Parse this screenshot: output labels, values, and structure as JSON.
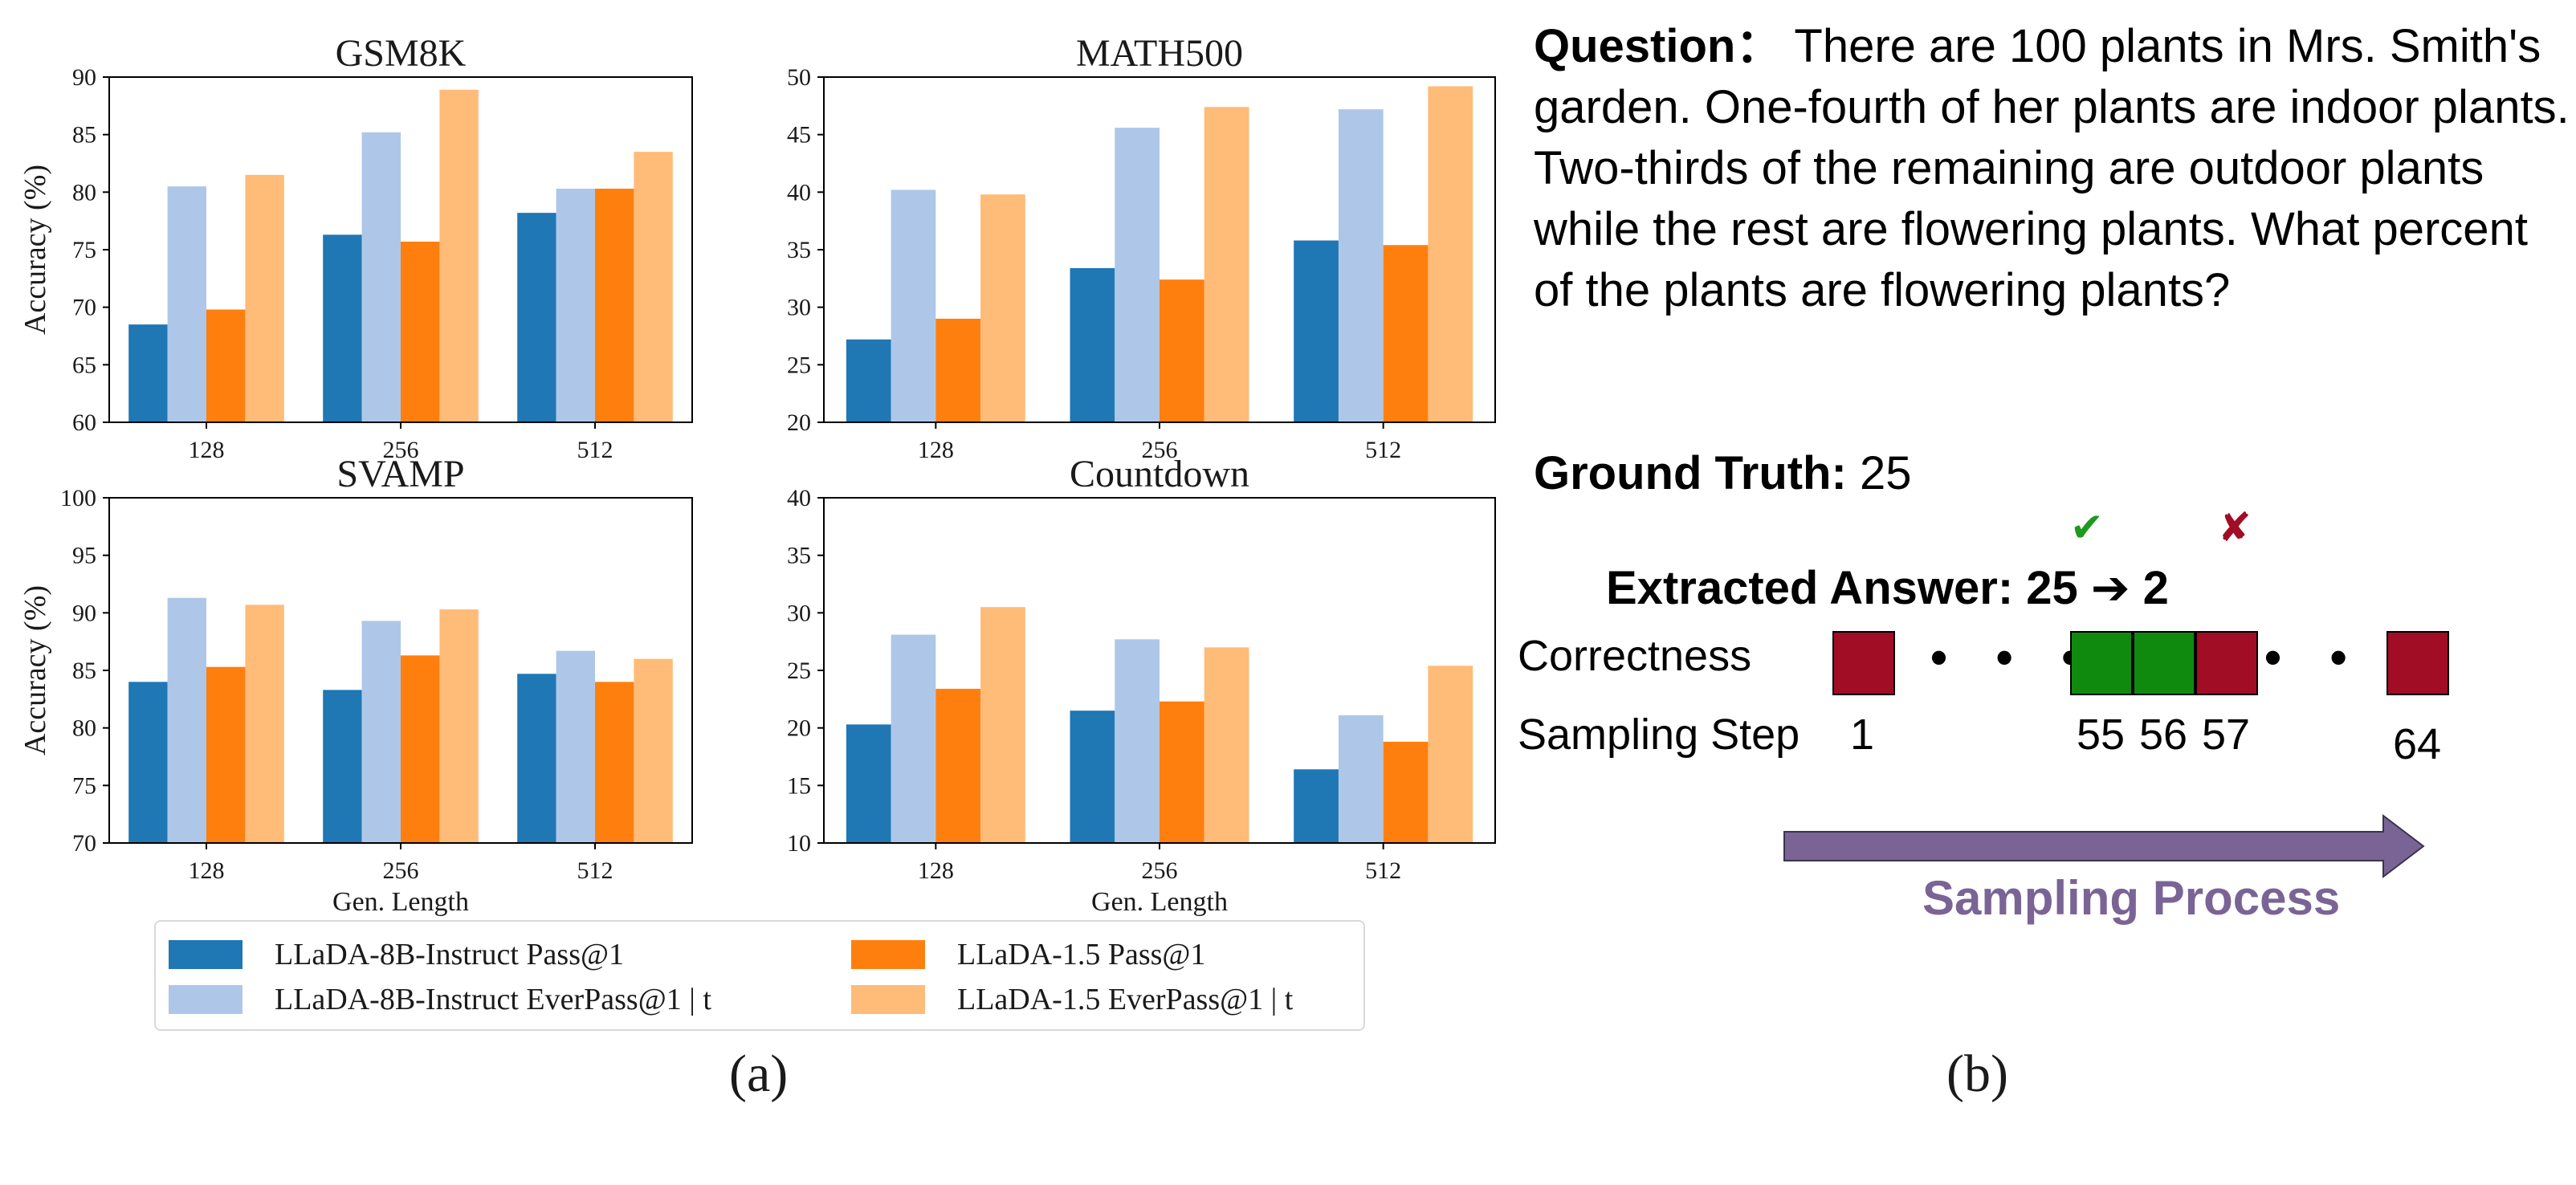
{
  "chart_data": [
    {
      "type": "bar",
      "title": "GSM8K",
      "categories": [
        "128",
        "256",
        "512"
      ],
      "ylim": [
        60,
        90
      ],
      "yticks": [
        60,
        65,
        70,
        75,
        80,
        85,
        90
      ],
      "ylabel": "Accuracy (%)",
      "xlabel": "",
      "series": [
        {
          "name": "LLaDA-8B-Instruct Pass@1",
          "values": [
            68.5,
            76.3,
            78.2
          ]
        },
        {
          "name": "LLaDA-8B-Instruct EverPass@1 | t",
          "values": [
            80.5,
            85.2,
            80.3
          ]
        },
        {
          "name": "LLaDA-1.5 Pass@1",
          "values": [
            69.8,
            75.7,
            80.3
          ]
        },
        {
          "name": "LLaDA-1.5 EverPass@1 | t",
          "values": [
            81.5,
            88.9,
            83.5
          ]
        }
      ]
    },
    {
      "type": "bar",
      "title": "MATH500",
      "categories": [
        "128",
        "256",
        "512"
      ],
      "ylim": [
        20,
        50
      ],
      "yticks": [
        20,
        25,
        30,
        35,
        40,
        45,
        50
      ],
      "ylabel": "",
      "xlabel": "",
      "series": [
        {
          "name": "LLaDA-8B-Instruct Pass@1",
          "values": [
            27.2,
            33.4,
            35.8
          ]
        },
        {
          "name": "LLaDA-8B-Instruct EverPass@1 | t",
          "values": [
            40.2,
            45.6,
            47.2
          ]
        },
        {
          "name": "LLaDA-1.5 Pass@1",
          "values": [
            29.0,
            32.4,
            35.4
          ]
        },
        {
          "name": "LLaDA-1.5 EverPass@1 | t",
          "values": [
            39.8,
            47.4,
            49.2
          ]
        }
      ]
    },
    {
      "type": "bar",
      "title": "SVAMP",
      "categories": [
        "128",
        "256",
        "512"
      ],
      "ylim": [
        70,
        100
      ],
      "yticks": [
        70,
        75,
        80,
        85,
        90,
        95,
        100
      ],
      "ylabel": "Accuracy (%)",
      "xlabel": "Gen. Length",
      "series": [
        {
          "name": "LLaDA-8B-Instruct Pass@1",
          "values": [
            84.0,
            83.3,
            84.7
          ]
        },
        {
          "name": "LLaDA-8B-Instruct EverPass@1 | t",
          "values": [
            91.3,
            89.3,
            86.7
          ]
        },
        {
          "name": "LLaDA-1.5 Pass@1",
          "values": [
            85.3,
            86.3,
            84.0
          ]
        },
        {
          "name": "LLaDA-1.5 EverPass@1 | t",
          "values": [
            90.7,
            90.3,
            86.0
          ]
        }
      ]
    },
    {
      "type": "bar",
      "title": "Countdown",
      "categories": [
        "128",
        "256",
        "512"
      ],
      "ylim": [
        10,
        40
      ],
      "yticks": [
        10,
        15,
        20,
        25,
        30,
        35,
        40
      ],
      "ylabel": "",
      "xlabel": "Gen. Length",
      "series": [
        {
          "name": "LLaDA-8B-Instruct Pass@1",
          "values": [
            20.3,
            21.5,
            16.4
          ]
        },
        {
          "name": "LLaDA-8B-Instruct EverPass@1 | t",
          "values": [
            28.1,
            27.7,
            21.1
          ]
        },
        {
          "name": "LLaDA-1.5 Pass@1",
          "values": [
            23.4,
            22.3,
            18.8
          ]
        },
        {
          "name": "LLaDA-1.5 EverPass@1 | t",
          "values": [
            30.5,
            27.0,
            25.4
          ]
        }
      ]
    }
  ],
  "colors": {
    "series": [
      "#1f77b4",
      "#aec7e8",
      "#ff7f0e",
      "#ffbb78"
    ],
    "correct": "#0f8a0f",
    "incorrect": "#a00d24",
    "process": "#7a6495"
  },
  "legend": {
    "items": [
      "LLaDA-8B-Instruct Pass@1",
      "LLaDA-1.5 Pass@1",
      "LLaDA-8B-Instruct EverPass@1 | t",
      "LLaDA-1.5 EverPass@1 | t"
    ]
  },
  "panel_labels": {
    "a": "(a)",
    "b": "(b)"
  },
  "example": {
    "question_label": "Question：",
    "question_text": "There are 100 plants in Mrs. Smith's garden. One-fourth of her plants are indoor plants. Two-thirds of the remaining are outdoor plants while the rest are flowering plants. What percent of the plants are flowering plants?",
    "ground_truth_label": "Ground Truth:",
    "ground_truth_value": "25",
    "check_mark": "✔",
    "cross_mark": "✘",
    "extracted_label": "Extracted Answer:",
    "extracted_first": "25",
    "arrow": "➔",
    "extracted_second": "2",
    "correctness_label": "Correctness",
    "sampling_step_label": "Sampling Step",
    "dots": "• • •",
    "steps": [
      "1",
      "55",
      "56",
      "57",
      "64"
    ],
    "cells": [
      "incorrect",
      "correct",
      "correct",
      "incorrect",
      "incorrect"
    ],
    "process_label": "Sampling Process"
  }
}
